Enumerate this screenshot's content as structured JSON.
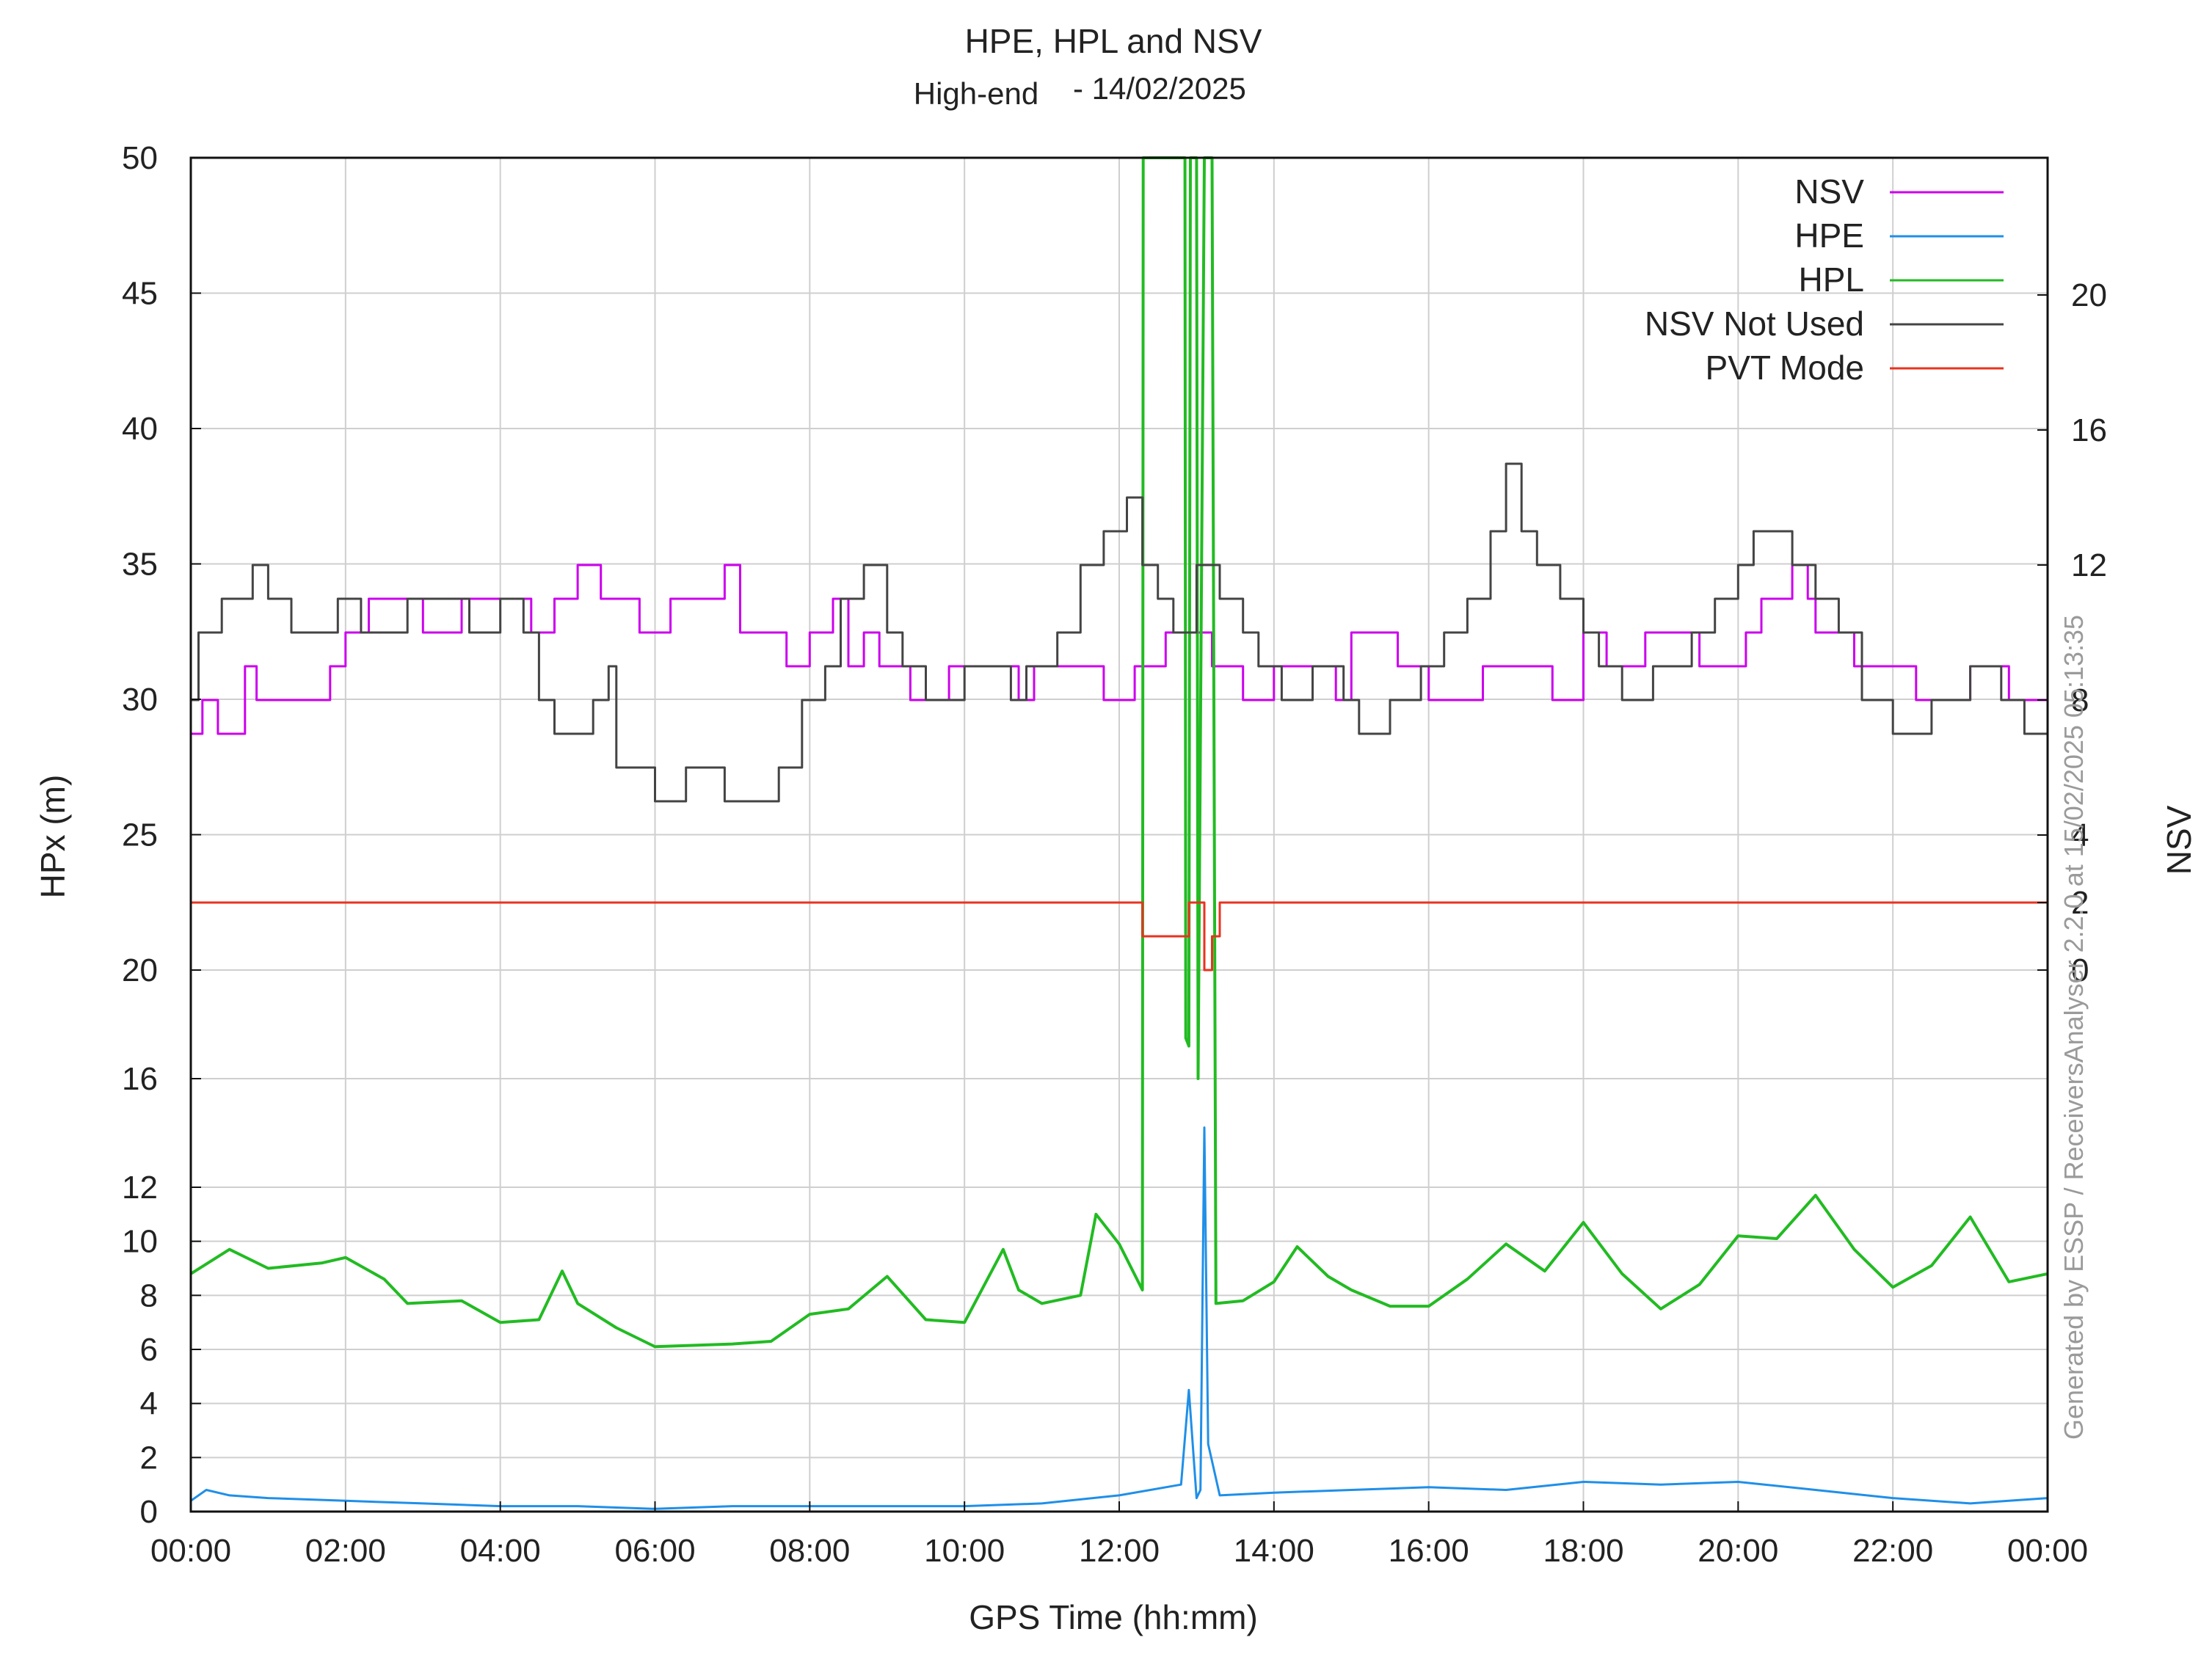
{
  "chart_data": {
    "type": "line",
    "title": "HPE, HPL and NSV",
    "subtitle_prefix": "High-end",
    "subtitle_date": "- 14/02/2025",
    "xlabel": "GPS Time (hh:mm)",
    "ylabel": "HPx (m)",
    "y2label": "NSV",
    "watermark": "Generated by ESSP / ReceiversAnalyser 2.2.0 at 15/02/2025 05:13:35",
    "x_ticks": [
      "00:00",
      "02:00",
      "04:00",
      "06:00",
      "08:00",
      "10:00",
      "12:00",
      "14:00",
      "16:00",
      "18:00",
      "20:00",
      "22:00",
      "00:00"
    ],
    "x_range_hours": [
      0,
      24
    ],
    "y_ticks": [
      0,
      2,
      4,
      6,
      8,
      10,
      12,
      16,
      20,
      25,
      30,
      35,
      40,
      45,
      50
    ],
    "y_scale_breakpoints": [
      [
        0,
        0
      ],
      [
        12,
        12
      ],
      [
        20,
        20
      ],
      [
        50,
        50
      ]
    ],
    "y2_ticks": [
      0,
      2,
      4,
      8,
      12,
      16,
      20
    ],
    "legend_position": "top-right",
    "grid": true,
    "series": [
      {
        "name": "NSV",
        "color": "#cc00ee",
        "axis": "right",
        "step": true,
        "points": [
          [
            0,
            7
          ],
          [
            0.15,
            8
          ],
          [
            0.35,
            7
          ],
          [
            0.7,
            9
          ],
          [
            0.85,
            8
          ],
          [
            1.8,
            9
          ],
          [
            2.0,
            10
          ],
          [
            2.3,
            11
          ],
          [
            3.0,
            10
          ],
          [
            3.5,
            11
          ],
          [
            4.4,
            10
          ],
          [
            4.7,
            11
          ],
          [
            5.0,
            12
          ],
          [
            5.3,
            11
          ],
          [
            5.8,
            10
          ],
          [
            6.2,
            11
          ],
          [
            6.9,
            12
          ],
          [
            7.1,
            10
          ],
          [
            7.7,
            9
          ],
          [
            8.0,
            10
          ],
          [
            8.3,
            11
          ],
          [
            8.5,
            9
          ],
          [
            8.7,
            10
          ],
          [
            8.9,
            9
          ],
          [
            9.3,
            8
          ],
          [
            9.8,
            9
          ],
          [
            10.7,
            8
          ],
          [
            10.9,
            9
          ],
          [
            11.8,
            8
          ],
          [
            12.2,
            9
          ],
          [
            12.6,
            10
          ],
          [
            13.2,
            9
          ],
          [
            13.6,
            8
          ],
          [
            14.0,
            9
          ],
          [
            14.8,
            8
          ],
          [
            15.0,
            10
          ],
          [
            15.6,
            9
          ],
          [
            16.0,
            8
          ],
          [
            16.7,
            9
          ],
          [
            17.6,
            8
          ],
          [
            18.0,
            10
          ],
          [
            18.3,
            9
          ],
          [
            18.8,
            10
          ],
          [
            19.5,
            9
          ],
          [
            20.1,
            10
          ],
          [
            20.3,
            11
          ],
          [
            20.7,
            12
          ],
          [
            20.9,
            11
          ],
          [
            21.0,
            10
          ],
          [
            21.5,
            9
          ],
          [
            22.3,
            8
          ],
          [
            23.0,
            9
          ],
          [
            23.5,
            8
          ],
          [
            24.0,
            7
          ]
        ]
      },
      {
        "name": "HPE",
        "color": "#1f8fe8",
        "axis": "left",
        "points": [
          [
            0,
            0.4
          ],
          [
            0.2,
            0.8
          ],
          [
            0.5,
            0.6
          ],
          [
            1,
            0.5
          ],
          [
            2,
            0.4
          ],
          [
            3,
            0.3
          ],
          [
            4,
            0.2
          ],
          [
            5,
            0.2
          ],
          [
            6,
            0.1
          ],
          [
            7,
            0.2
          ],
          [
            8,
            0.2
          ],
          [
            9,
            0.2
          ],
          [
            10,
            0.2
          ],
          [
            11,
            0.3
          ],
          [
            12,
            0.6
          ],
          [
            12.8,
            1.0
          ],
          [
            12.9,
            4.5
          ],
          [
            13.0,
            0.5
          ],
          [
            13.05,
            0.8
          ],
          [
            13.1,
            14.2
          ],
          [
            13.15,
            2.5
          ],
          [
            13.3,
            0.6
          ],
          [
            14,
            0.7
          ],
          [
            15,
            0.8
          ],
          [
            16,
            0.9
          ],
          [
            17,
            0.8
          ],
          [
            18,
            1.1
          ],
          [
            19,
            1.0
          ],
          [
            20,
            1.1
          ],
          [
            21,
            0.8
          ],
          [
            22,
            0.5
          ],
          [
            23,
            0.3
          ],
          [
            24,
            0.5
          ]
        ]
      },
      {
        "name": "HPL",
        "color": "#22bb22",
        "axis": "left",
        "points": [
          [
            0,
            8.8
          ],
          [
            0.5,
            9.7
          ],
          [
            1,
            9.0
          ],
          [
            1.7,
            9.2
          ],
          [
            2,
            9.4
          ],
          [
            2.5,
            8.6
          ],
          [
            2.8,
            7.7
          ],
          [
            3.5,
            7.8
          ],
          [
            4,
            7.0
          ],
          [
            4.5,
            7.1
          ],
          [
            4.8,
            8.9
          ],
          [
            5,
            7.7
          ],
          [
            5.5,
            6.8
          ],
          [
            6,
            6.1
          ],
          [
            7,
            6.2
          ],
          [
            7.5,
            6.3
          ],
          [
            8,
            7.3
          ],
          [
            8.5,
            7.5
          ],
          [
            9,
            8.7
          ],
          [
            9.5,
            7.1
          ],
          [
            10,
            7.0
          ],
          [
            10.5,
            9.7
          ],
          [
            10.7,
            8.2
          ],
          [
            11,
            7.7
          ],
          [
            11.5,
            8.0
          ],
          [
            11.7,
            11.0
          ],
          [
            12,
            9.9
          ],
          [
            12.3,
            8.2
          ],
          [
            12.31,
            50
          ],
          [
            12.85,
            50
          ],
          [
            12.86,
            17.5
          ],
          [
            12.9,
            17.2
          ],
          [
            12.92,
            50
          ],
          [
            13.0,
            50
          ],
          [
            13.02,
            16.0
          ],
          [
            13.1,
            50
          ],
          [
            13.2,
            50
          ],
          [
            13.25,
            7.7
          ],
          [
            13.6,
            7.8
          ],
          [
            14,
            8.5
          ],
          [
            14.3,
            9.8
          ],
          [
            14.7,
            8.7
          ],
          [
            15,
            8.2
          ],
          [
            15.5,
            7.6
          ],
          [
            16,
            7.6
          ],
          [
            16.5,
            8.6
          ],
          [
            17,
            9.9
          ],
          [
            17.5,
            8.9
          ],
          [
            18,
            10.7
          ],
          [
            18.5,
            8.8
          ],
          [
            19,
            7.5
          ],
          [
            19.5,
            8.4
          ],
          [
            20,
            10.2
          ],
          [
            20.5,
            10.1
          ],
          [
            21,
            11.7
          ],
          [
            21.5,
            9.7
          ],
          [
            22,
            8.3
          ],
          [
            22.5,
            9.1
          ],
          [
            23,
            10.9
          ],
          [
            23.5,
            8.5
          ],
          [
            24,
            8.8
          ]
        ]
      },
      {
        "name": "NSV Not Used",
        "color": "#444444",
        "axis": "right",
        "step": true,
        "points": [
          [
            0,
            8
          ],
          [
            0.1,
            10
          ],
          [
            0.4,
            11
          ],
          [
            0.8,
            12
          ],
          [
            1.0,
            11
          ],
          [
            1.3,
            10
          ],
          [
            1.9,
            11
          ],
          [
            2.2,
            10
          ],
          [
            2.8,
            11
          ],
          [
            3.6,
            10
          ],
          [
            4.0,
            11
          ],
          [
            4.3,
            10
          ],
          [
            4.5,
            8
          ],
          [
            4.7,
            7
          ],
          [
            5.2,
            8
          ],
          [
            5.4,
            9
          ],
          [
            5.5,
            6
          ],
          [
            6.0,
            5
          ],
          [
            6.4,
            6
          ],
          [
            6.9,
            5
          ],
          [
            7.2,
            5
          ],
          [
            7.6,
            6
          ],
          [
            7.9,
            8
          ],
          [
            8.2,
            9
          ],
          [
            8.4,
            11
          ],
          [
            8.7,
            12
          ],
          [
            9.0,
            10
          ],
          [
            9.2,
            9
          ],
          [
            9.5,
            8
          ],
          [
            10.0,
            9
          ],
          [
            10.6,
            8
          ],
          [
            10.8,
            9
          ],
          [
            11.2,
            10
          ],
          [
            11.5,
            12
          ],
          [
            11.8,
            13
          ],
          [
            12.1,
            14
          ],
          [
            12.3,
            12
          ],
          [
            12.5,
            11
          ],
          [
            12.7,
            10
          ],
          [
            13.0,
            12
          ],
          [
            13.3,
            11
          ],
          [
            13.6,
            10
          ],
          [
            13.8,
            9
          ],
          [
            14.1,
            8
          ],
          [
            14.5,
            9
          ],
          [
            14.9,
            8
          ],
          [
            15.1,
            7
          ],
          [
            15.5,
            8
          ],
          [
            15.9,
            9
          ],
          [
            16.2,
            10
          ],
          [
            16.5,
            11
          ],
          [
            16.8,
            13
          ],
          [
            17.0,
            15
          ],
          [
            17.2,
            13
          ],
          [
            17.4,
            12
          ],
          [
            17.7,
            11
          ],
          [
            18.0,
            10
          ],
          [
            18.2,
            9
          ],
          [
            18.5,
            8
          ],
          [
            18.9,
            9
          ],
          [
            19.4,
            10
          ],
          [
            19.7,
            11
          ],
          [
            20.0,
            12
          ],
          [
            20.2,
            13
          ],
          [
            20.5,
            13
          ],
          [
            20.7,
            12
          ],
          [
            21.0,
            11
          ],
          [
            21.3,
            10
          ],
          [
            21.6,
            8
          ],
          [
            22.0,
            7
          ],
          [
            22.5,
            8
          ],
          [
            23.0,
            9
          ],
          [
            23.4,
            8
          ],
          [
            23.7,
            7
          ],
          [
            24.0,
            7
          ]
        ]
      },
      {
        "name": "PVT Mode",
        "color": "#e8331f",
        "axis": "right",
        "step": true,
        "points": [
          [
            0,
            2
          ],
          [
            12.3,
            1
          ],
          [
            12.9,
            2
          ],
          [
            13.1,
            0
          ],
          [
            13.2,
            1
          ],
          [
            13.3,
            2
          ],
          [
            24,
            2
          ]
        ]
      }
    ]
  }
}
